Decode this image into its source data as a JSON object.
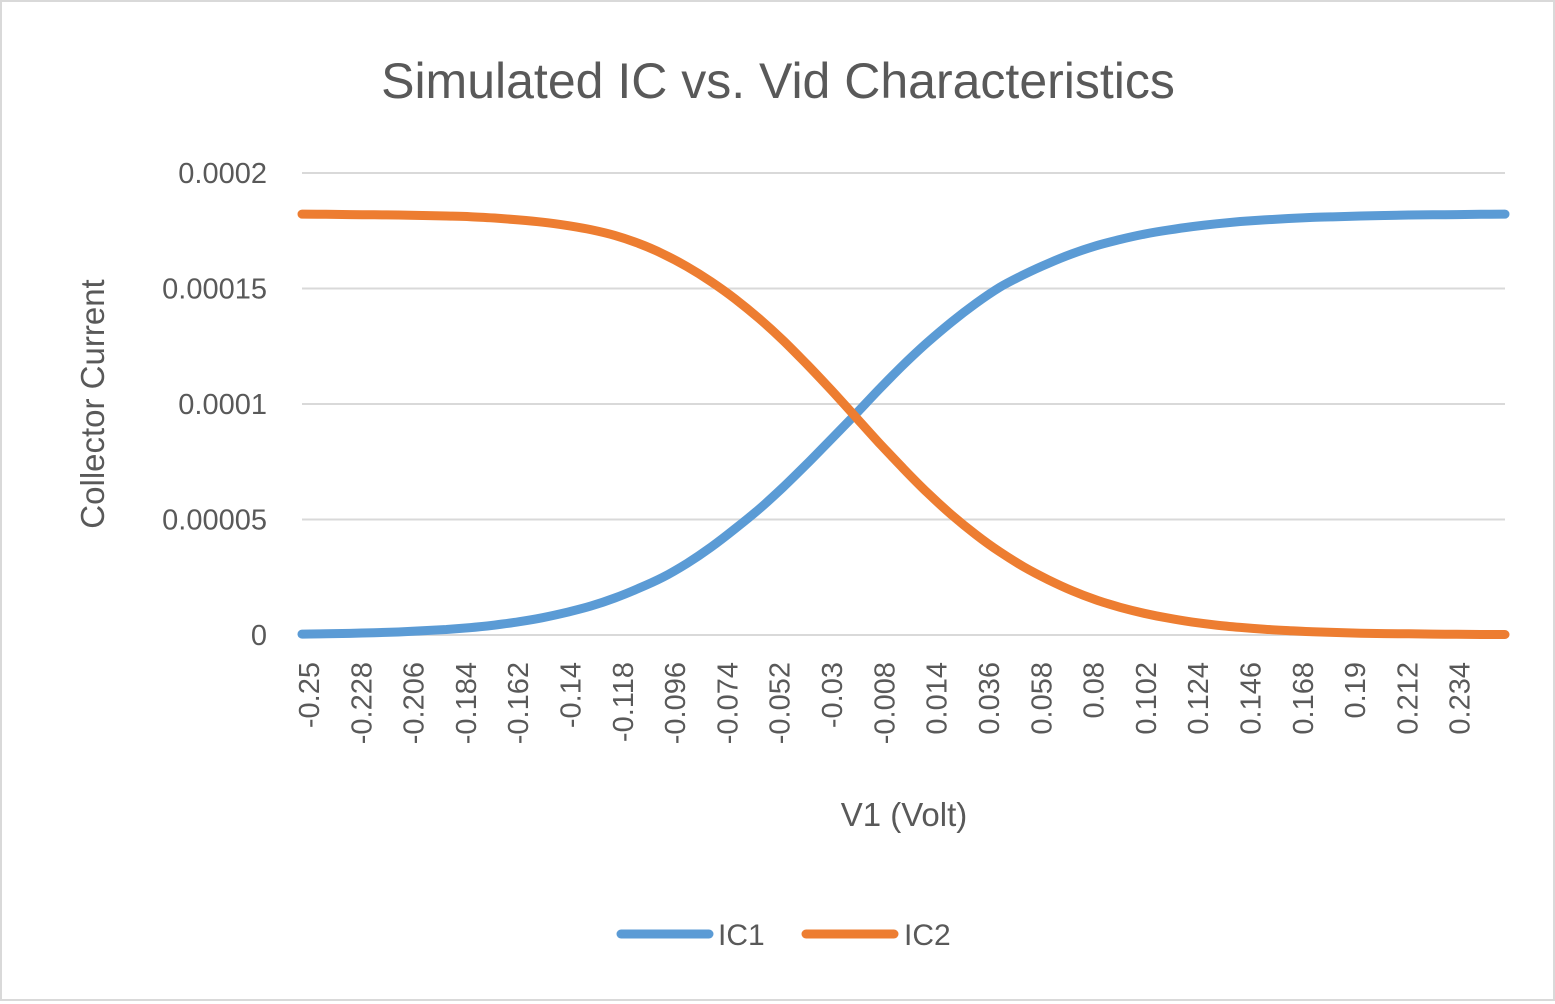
{
  "chart_data": {
    "type": "line",
    "title": "Simulated IC vs. Vid Characteristics",
    "xlabel": "V1 (Volt)",
    "ylabel": "Collector Current",
    "x_tick_labels": [
      "-0.25",
      "-0.228",
      "-0.206",
      "-0.184",
      "-0.162",
      "-0.14",
      "-0.118",
      "-0.096",
      "-0.074",
      "-0.052",
      "-0.03",
      "-0.008",
      "0.014",
      "0.036",
      "0.058",
      "0.08",
      "0.102",
      "0.124",
      "0.146",
      "0.168",
      "0.19",
      "0.212",
      "0.234"
    ],
    "y_tick_labels": [
      "0",
      "0.00005",
      "0.0001",
      "0.00015",
      "0.0002"
    ],
    "xlim": [
      -0.25,
      0.25
    ],
    "ylim": [
      0,
      0.0002
    ],
    "grid": true,
    "legend_position": "bottom",
    "series": [
      {
        "name": "IC1",
        "color": "#5b9bd5",
        "x": [
          -0.25,
          -0.24,
          -0.23,
          -0.22,
          -0.21,
          -0.2,
          -0.19,
          -0.18,
          -0.17,
          -0.16,
          -0.15,
          -0.14,
          -0.13,
          -0.12,
          -0.11,
          -0.1,
          -0.09,
          -0.08,
          -0.07,
          -0.06,
          -0.05,
          -0.04,
          -0.03,
          -0.02,
          -0.01,
          0,
          0.01,
          0.02,
          0.03,
          0.04,
          0.05,
          0.06,
          0.07,
          0.08,
          0.09,
          0.1,
          0.11,
          0.12,
          0.13,
          0.14,
          0.15,
          0.16,
          0.17,
          0.18,
          0.19,
          0.2,
          0.21,
          0.22,
          0.23,
          0.24,
          0.25
        ],
        "values": [
          4e-07,
          5e-07,
          7e-07,
          1e-06,
          1.3e-06,
          1.8e-06,
          2.4e-06,
          3.2e-06,
          4.3e-06,
          5.7e-06,
          7.5e-06,
          9.8e-06,
          1.25e-05,
          1.6e-05,
          2.02e-05,
          2.5e-05,
          3.1e-05,
          3.8e-05,
          4.6e-05,
          5.45e-05,
          6.4e-05,
          7.42e-05,
          8.48e-05,
          9.55e-05,
          0.0001065,
          0.000117,
          0.0001267,
          0.0001355,
          0.0001435,
          0.0001505,
          0.000156,
          0.0001608,
          0.000165,
          0.0001685,
          0.0001712,
          0.0001735,
          0.0001753,
          0.0001768,
          0.000178,
          0.000179,
          0.0001797,
          0.0001803,
          0.0001808,
          0.0001811,
          0.0001814,
          0.0001816,
          0.0001818,
          0.0001819,
          0.000182,
          0.0001821,
          0.0001822
        ]
      },
      {
        "name": "IC2",
        "color": "#ed7d31",
        "x": [
          -0.25,
          -0.24,
          -0.23,
          -0.22,
          -0.21,
          -0.2,
          -0.19,
          -0.18,
          -0.17,
          -0.16,
          -0.15,
          -0.14,
          -0.13,
          -0.12,
          -0.11,
          -0.1,
          -0.09,
          -0.08,
          -0.07,
          -0.06,
          -0.05,
          -0.04,
          -0.03,
          -0.02,
          -0.01,
          0,
          0.01,
          0.02,
          0.03,
          0.04,
          0.05,
          0.06,
          0.07,
          0.08,
          0.09,
          0.1,
          0.11,
          0.12,
          0.13,
          0.14,
          0.15,
          0.16,
          0.17,
          0.18,
          0.19,
          0.2,
          0.21,
          0.22,
          0.23,
          0.24,
          0.25
        ],
        "values": [
          0.0001822,
          0.0001821,
          0.000182,
          0.0001819,
          0.0001818,
          0.0001816,
          0.0001814,
          0.0001811,
          0.0001805,
          0.0001797,
          0.0001787,
          0.0001773,
          0.0001755,
          0.000173,
          0.0001695,
          0.000165,
          0.0001595,
          0.000153,
          0.0001455,
          0.000137,
          0.0001275,
          0.000117,
          0.000106,
          9.45e-05,
          8.3e-05,
          7.2e-05,
          6.15e-05,
          5.2e-05,
          4.35e-05,
          3.6e-05,
          2.95e-05,
          2.4e-05,
          1.92e-05,
          1.52e-05,
          1.2e-05,
          9.4e-06,
          7.3e-06,
          5.6e-06,
          4.3e-06,
          3.3e-06,
          2.5e-06,
          1.9e-06,
          1.4e-06,
          1.1e-06,
          8e-07,
          6e-07,
          5e-07,
          4e-07,
          3e-07,
          2e-07,
          2e-07
        ]
      }
    ]
  }
}
